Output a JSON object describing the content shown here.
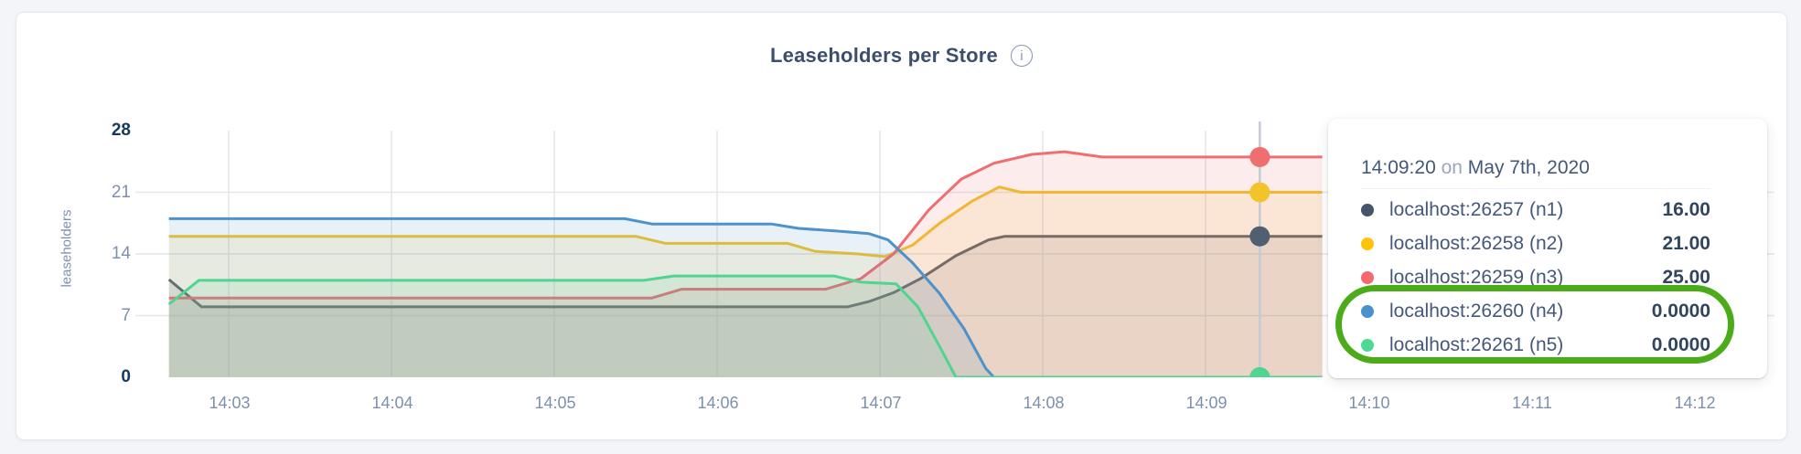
{
  "header": {
    "title": "Leaseholders per Store",
    "info_icon_glyph": "i"
  },
  "y_axis": {
    "label": "leaseholders",
    "ticks": [
      {
        "label": "0",
        "value": 0,
        "bold": true
      },
      {
        "label": "7",
        "value": 7,
        "bold": false
      },
      {
        "label": "14",
        "value": 14,
        "bold": false
      },
      {
        "label": "21",
        "value": 21,
        "bold": false
      },
      {
        "label": "28",
        "value": 28,
        "bold": true
      }
    ],
    "gridline_values": [
      7,
      14,
      21
    ]
  },
  "x_axis": {
    "ticks": [
      {
        "label": "14:03",
        "seconds": 60
      },
      {
        "label": "14:04",
        "seconds": 120
      },
      {
        "label": "14:05",
        "seconds": 180
      },
      {
        "label": "14:06",
        "seconds": 240
      },
      {
        "label": "14:07",
        "seconds": 300
      },
      {
        "label": "14:08",
        "seconds": 360
      },
      {
        "label": "14:09",
        "seconds": 420
      },
      {
        "label": "14:10",
        "seconds": 480
      },
      {
        "label": "14:11",
        "seconds": 540
      },
      {
        "label": "14:12",
        "seconds": 600
      }
    ]
  },
  "chart_data": {
    "type": "area",
    "title": "Leaseholders per Store",
    "xlabel": "",
    "ylabel": "leaseholders",
    "ylim": [
      0,
      28
    ],
    "x_tick_labels": [
      "14:03",
      "14:04",
      "14:05",
      "14:06",
      "14:07",
      "14:08",
      "14:09",
      "14:10",
      "14:11",
      "14:12"
    ],
    "grid": true,
    "legend_position": "tooltip",
    "time_base": "seconds after 14:02:00",
    "data_time_span": [
      "14:02:38",
      "14:09:43"
    ],
    "hover": {
      "time_label": "14:09:20",
      "seconds": 440,
      "values": [
        16,
        21,
        25,
        0,
        0
      ]
    },
    "series": [
      {
        "name": "localhost:26257 (n1)",
        "color": "#525f70",
        "points": [
          [
            38,
            11.1
          ],
          [
            50,
            8
          ],
          [
            288,
            8
          ],
          [
            296,
            8.6
          ],
          [
            305,
            9.6
          ],
          [
            315,
            11.2
          ],
          [
            328,
            13.8
          ],
          [
            340,
            15.6
          ],
          [
            346,
            16
          ],
          [
            463,
            16
          ]
        ]
      },
      {
        "name": "localhost:26258 (n2)",
        "color": "#f2c32b",
        "points": [
          [
            38,
            16
          ],
          [
            210,
            16
          ],
          [
            221,
            15.2
          ],
          [
            266,
            15.2
          ],
          [
            276,
            14.3
          ],
          [
            292,
            14
          ],
          [
            302,
            13.7
          ],
          [
            312,
            15
          ],
          [
            322,
            17.5
          ],
          [
            334,
            20
          ],
          [
            344,
            21.6
          ],
          [
            352,
            21
          ],
          [
            463,
            21
          ]
        ]
      },
      {
        "name": "localhost:26259 (n3)",
        "color": "#ef6e6f",
        "points": [
          [
            38,
            9
          ],
          [
            216,
            9
          ],
          [
            227,
            10
          ],
          [
            280,
            10
          ],
          [
            293,
            11.2
          ],
          [
            305,
            14
          ],
          [
            318,
            19
          ],
          [
            330,
            22.5
          ],
          [
            342,
            24.3
          ],
          [
            356,
            25.3
          ],
          [
            368,
            25.6
          ],
          [
            382,
            25
          ],
          [
            463,
            25
          ]
        ]
      },
      {
        "name": "localhost:26260 (n4)",
        "color": "#4e92cb",
        "points": [
          [
            38,
            18
          ],
          [
            206,
            18
          ],
          [
            216,
            17.4
          ],
          [
            260,
            17.4
          ],
          [
            270,
            16.9
          ],
          [
            284,
            16.6
          ],
          [
            296,
            16.3
          ],
          [
            303,
            15.6
          ],
          [
            312,
            13
          ],
          [
            322,
            9.5
          ],
          [
            331,
            5.5
          ],
          [
            339,
            1
          ],
          [
            342,
            0
          ],
          [
            463,
            0
          ]
        ]
      },
      {
        "name": "localhost:26261 (n5)",
        "color": "#4fd58f",
        "points": [
          [
            38,
            8.3
          ],
          [
            49,
            11
          ],
          [
            213,
            11
          ],
          [
            224,
            11.5
          ],
          [
            283,
            11.5
          ],
          [
            293,
            10.8
          ],
          [
            306,
            10.6
          ],
          [
            314,
            8
          ],
          [
            322,
            3.5
          ],
          [
            328,
            0
          ],
          [
            463,
            0
          ]
        ]
      }
    ]
  },
  "tooltip": {
    "time": "14:09:20",
    "connector": "on",
    "date": "May 7th, 2020",
    "rows": [
      {
        "label": "localhost:26257 (n1)",
        "value": "16.00",
        "color": "#45536b"
      },
      {
        "label": "localhost:26258 (n2)",
        "value": "21.00",
        "color": "#fdc30b"
      },
      {
        "label": "localhost:26259 (n3)",
        "value": "25.00",
        "color": "#f4696f"
      },
      {
        "label": "localhost:26260 (n4)",
        "value": "0.0000",
        "color": "#4a90cf"
      },
      {
        "label": "localhost:26261 (n5)",
        "value": "0.0000",
        "color": "#4ed992"
      }
    ],
    "annotation": {
      "type": "circle",
      "color": "#4cab19",
      "circled_row_indexes": [
        3,
        4
      ]
    }
  },
  "colors": {
    "page_bg": "#f4f5f9",
    "card_bg": "#ffffff",
    "card_border": "#e7e8ec",
    "gridline": "#e3e6ed",
    "hover_line": "#c5cad5",
    "tick_label": "#7d90ad",
    "tick_label_bold": "#16395f",
    "title": "#3b4f6d",
    "tooltip_text": "#44587a",
    "tooltip_muted": "#9aa7bb",
    "tooltip_value": "#32455f",
    "info_icon": "#8496b2",
    "fill_opacity": "0.13"
  }
}
